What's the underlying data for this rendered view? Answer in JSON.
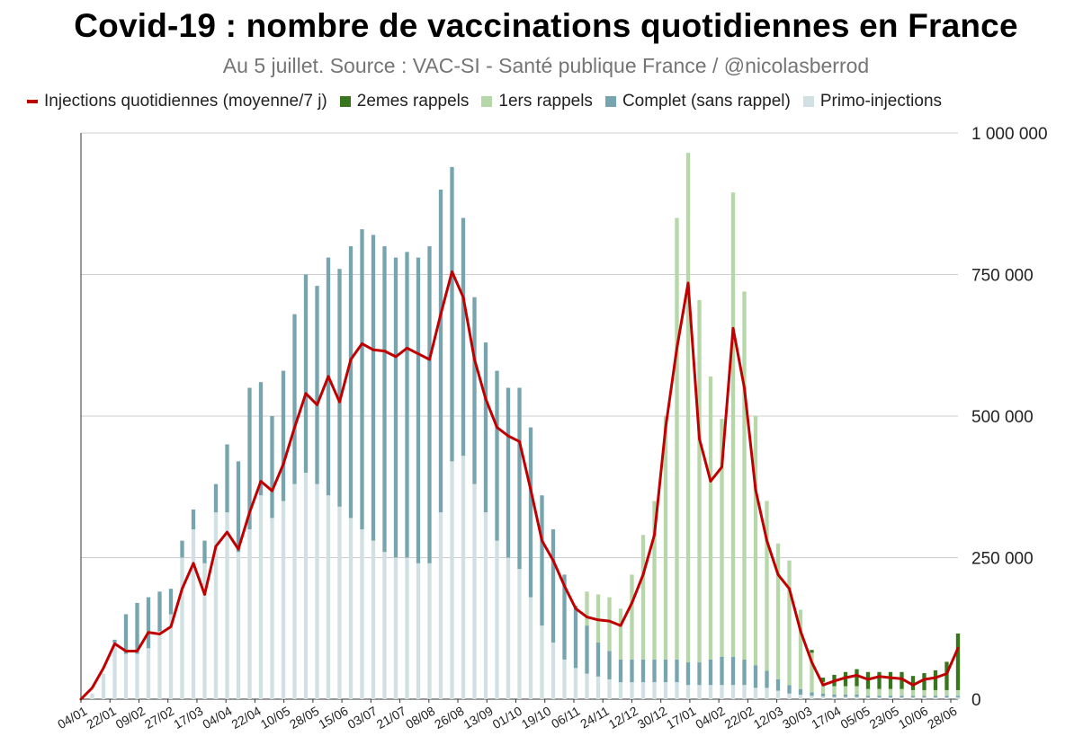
{
  "title": "Covid-19 : nombre de vaccinations quotidiennes en France",
  "subtitle": "Au 5 juillet. Source : VAC-SI - Santé publique France / @nicolasberrod",
  "colors": {
    "injections_line": "#c00000",
    "rappels2": "#38761d",
    "rappels1": "#b6d7a8",
    "complet": "#76a5af",
    "primo": "#d0e0e3",
    "grid": "#cccccc",
    "axis": "#333333"
  },
  "legend": [
    {
      "label": "Injections quotidiennes (moyenne/7 j)",
      "color": "#c00000",
      "kind": "line"
    },
    {
      "label": "2emes rappels",
      "color": "#38761d",
      "kind": "box"
    },
    {
      "label": "1ers rappels",
      "color": "#b6d7a8",
      "kind": "box"
    },
    {
      "label": "Complet (sans rappel)",
      "color": "#76a5af",
      "kind": "box"
    },
    {
      "label": "Primo-injections",
      "color": "#d0e0e3",
      "kind": "box"
    }
  ],
  "chart_data": {
    "type": "bar",
    "stacked": true,
    "grid": true,
    "ylim": [
      0,
      1000000
    ],
    "y_ticks": [
      0,
      250000,
      500000,
      750000,
      1000000
    ],
    "y_tick_labels": [
      "0",
      "250 000",
      "500 000",
      "750 000",
      "1 000 000"
    ],
    "y_axis_side": "right",
    "x_tick_labels": [
      "04/01",
      "22/01",
      "09/02",
      "27/02",
      "17/03",
      "04/04",
      "22/04",
      "10/05",
      "28/05",
      "15/06",
      "03/07",
      "21/07",
      "08/08",
      "26/08",
      "13/09",
      "01/10",
      "19/10",
      "06/11",
      "24/11",
      "12/12",
      "30/12",
      "17/01",
      "04/02",
      "22/02",
      "12/03",
      "30/03",
      "17/04",
      "05/05",
      "23/05",
      "10/06",
      "28/06"
    ],
    "x_tick_step_days": 18,
    "bar_series_order": [
      "Primo-injections",
      "Complet (sans rappel)",
      "1ers rappels",
      "2emes rappels"
    ],
    "line_series": {
      "name": "Injections quotidiennes (moyenne/7 j)",
      "values": [
        0,
        20000,
        55000,
        98000,
        85000,
        85000,
        118000,
        115000,
        128000,
        195000,
        240000,
        185000,
        270000,
        295000,
        265000,
        330000,
        385000,
        368000,
        415000,
        480000,
        540000,
        520000,
        570000,
        525000,
        600000,
        628000,
        617000,
        615000,
        605000,
        620000,
        610000,
        600000,
        680000,
        755000,
        710000,
        600000,
        530000,
        480000,
        465000,
        455000,
        370000,
        280000,
        245000,
        200000,
        160000,
        145000,
        140000,
        138000,
        130000,
        170000,
        220000,
        290000,
        480000,
        620000,
        735000,
        460000,
        385000,
        410000,
        655000,
        550000,
        370000,
        280000,
        220000,
        195000,
        120000,
        65000,
        25000,
        32000,
        38000,
        42000,
        35000,
        40000,
        38000,
        36000,
        25000,
        35000,
        38000,
        45000,
        90000
      ]
    },
    "bar_segments": [
      {
        "primo": 0,
        "complet": 0,
        "rappels1": 0,
        "rappels2": 0
      },
      {
        "primo": 10000,
        "complet": 0,
        "rappels1": 0,
        "rappels2": 0
      },
      {
        "primo": 45000,
        "complet": 0,
        "rappels1": 0,
        "rappels2": 0
      },
      {
        "primo": 100000,
        "complet": 5000,
        "rappels1": 0,
        "rappels2": 0
      },
      {
        "primo": 80000,
        "complet": 70000,
        "rappels1": 0,
        "rappels2": 0
      },
      {
        "primo": 80000,
        "complet": 90000,
        "rappels1": 0,
        "rappels2": 0
      },
      {
        "primo": 90000,
        "complet": 90000,
        "rappels1": 0,
        "rappels2": 0
      },
      {
        "primo": 120000,
        "complet": 70000,
        "rappels1": 0,
        "rappels2": 0
      },
      {
        "primo": 150000,
        "complet": 45000,
        "rappels1": 0,
        "rappels2": 0
      },
      {
        "primo": 250000,
        "complet": 30000,
        "rappels1": 0,
        "rappels2": 0
      },
      {
        "primo": 300000,
        "complet": 35000,
        "rappels1": 0,
        "rappels2": 0
      },
      {
        "primo": 240000,
        "complet": 40000,
        "rappels1": 0,
        "rappels2": 0
      },
      {
        "primo": 330000,
        "complet": 50000,
        "rappels1": 0,
        "rappels2": 0
      },
      {
        "primo": 330000,
        "complet": 120000,
        "rappels1": 0,
        "rappels2": 0
      },
      {
        "primo": 260000,
        "complet": 160000,
        "rappels1": 0,
        "rappels2": 0
      },
      {
        "primo": 300000,
        "complet": 250000,
        "rappels1": 0,
        "rappels2": 0
      },
      {
        "primo": 360000,
        "complet": 200000,
        "rappels1": 0,
        "rappels2": 0
      },
      {
        "primo": 320000,
        "complet": 180000,
        "rappels1": 0,
        "rappels2": 0
      },
      {
        "primo": 350000,
        "complet": 230000,
        "rappels1": 0,
        "rappels2": 0
      },
      {
        "primo": 380000,
        "complet": 300000,
        "rappels1": 0,
        "rappels2": 0
      },
      {
        "primo": 400000,
        "complet": 350000,
        "rappels1": 0,
        "rappels2": 0
      },
      {
        "primo": 380000,
        "complet": 350000,
        "rappels1": 0,
        "rappels2": 0
      },
      {
        "primo": 360000,
        "complet": 420000,
        "rappels1": 0,
        "rappels2": 0
      },
      {
        "primo": 340000,
        "complet": 420000,
        "rappels1": 0,
        "rappels2": 0
      },
      {
        "primo": 320000,
        "complet": 480000,
        "rappels1": 0,
        "rappels2": 0
      },
      {
        "primo": 300000,
        "complet": 530000,
        "rappels1": 0,
        "rappels2": 0
      },
      {
        "primo": 280000,
        "complet": 540000,
        "rappels1": 0,
        "rappels2": 0
      },
      {
        "primo": 260000,
        "complet": 540000,
        "rappels1": 0,
        "rappels2": 0
      },
      {
        "primo": 250000,
        "complet": 530000,
        "rappels1": 0,
        "rappels2": 0
      },
      {
        "primo": 250000,
        "complet": 540000,
        "rappels1": 0,
        "rappels2": 0
      },
      {
        "primo": 240000,
        "complet": 540000,
        "rappels1": 0,
        "rappels2": 0
      },
      {
        "primo": 240000,
        "complet": 560000,
        "rappels1": 0,
        "rappels2": 0
      },
      {
        "primo": 330000,
        "complet": 570000,
        "rappels1": 0,
        "rappels2": 0
      },
      {
        "primo": 420000,
        "complet": 520000,
        "rappels1": 0,
        "rappels2": 0
      },
      {
        "primo": 430000,
        "complet": 420000,
        "rappels1": 0,
        "rappels2": 0
      },
      {
        "primo": 380000,
        "complet": 330000,
        "rappels1": 0,
        "rappels2": 0
      },
      {
        "primo": 330000,
        "complet": 300000,
        "rappels1": 0,
        "rappels2": 0
      },
      {
        "primo": 280000,
        "complet": 300000,
        "rappels1": 0,
        "rappels2": 0
      },
      {
        "primo": 250000,
        "complet": 300000,
        "rappels1": 0,
        "rappels2": 0
      },
      {
        "primo": 230000,
        "complet": 320000,
        "rappels1": 0,
        "rappels2": 0
      },
      {
        "primo": 180000,
        "complet": 300000,
        "rappels1": 0,
        "rappels2": 0
      },
      {
        "primo": 130000,
        "complet": 230000,
        "rappels1": 0,
        "rappels2": 0
      },
      {
        "primo": 100000,
        "complet": 200000,
        "rappels1": 0,
        "rappels2": 0
      },
      {
        "primo": 70000,
        "complet": 150000,
        "rappels1": 0,
        "rappels2": 0
      },
      {
        "primo": 55000,
        "complet": 110000,
        "rappels1": 0,
        "rappels2": 0
      },
      {
        "primo": 45000,
        "complet": 85000,
        "rappels1": 60000,
        "rappels2": 0
      },
      {
        "primo": 40000,
        "complet": 60000,
        "rappels1": 85000,
        "rappels2": 0
      },
      {
        "primo": 35000,
        "complet": 50000,
        "rappels1": 95000,
        "rappels2": 0
      },
      {
        "primo": 30000,
        "complet": 40000,
        "rappels1": 90000,
        "rappels2": 0
      },
      {
        "primo": 30000,
        "complet": 40000,
        "rappels1": 150000,
        "rappels2": 0
      },
      {
        "primo": 30000,
        "complet": 40000,
        "rappels1": 220000,
        "rappels2": 0
      },
      {
        "primo": 30000,
        "complet": 40000,
        "rappels1": 280000,
        "rappels2": 0
      },
      {
        "primo": 30000,
        "complet": 40000,
        "rappels1": 430000,
        "rappels2": 0
      },
      {
        "primo": 30000,
        "complet": 40000,
        "rappels1": 780000,
        "rappels2": 0
      },
      {
        "primo": 25000,
        "complet": 40000,
        "rappels1": 900000,
        "rappels2": 0
      },
      {
        "primo": 25000,
        "complet": 40000,
        "rappels1": 640000,
        "rappels2": 0
      },
      {
        "primo": 25000,
        "complet": 45000,
        "rappels1": 500000,
        "rappels2": 0
      },
      {
        "primo": 25000,
        "complet": 50000,
        "rappels1": 420000,
        "rappels2": 0
      },
      {
        "primo": 25000,
        "complet": 50000,
        "rappels1": 820000,
        "rappels2": 0
      },
      {
        "primo": 25000,
        "complet": 45000,
        "rappels1": 650000,
        "rappels2": 0
      },
      {
        "primo": 20000,
        "complet": 40000,
        "rappels1": 440000,
        "rappels2": 0
      },
      {
        "primo": 20000,
        "complet": 30000,
        "rappels1": 300000,
        "rappels2": 0
      },
      {
        "primo": 15000,
        "complet": 20000,
        "rappels1": 240000,
        "rappels2": 0
      },
      {
        "primo": 10000,
        "complet": 15000,
        "rappels1": 220000,
        "rappels2": 0
      },
      {
        "primo": 8000,
        "complet": 10000,
        "rappels1": 140000,
        "rappels2": 0
      },
      {
        "primo": 6000,
        "complet": 6000,
        "rappels1": 70000,
        "rappels2": 5000
      },
      {
        "primo": 5000,
        "complet": 5000,
        "rappels1": 20000,
        "rappels2": 8000
      },
      {
        "primo": 4000,
        "complet": 4000,
        "rappels1": 15000,
        "rappels2": 20000
      },
      {
        "primo": 4000,
        "complet": 4000,
        "rappels1": 15000,
        "rappels2": 25000
      },
      {
        "primo": 4000,
        "complet": 4000,
        "rappels1": 15000,
        "rappels2": 30000
      },
      {
        "primo": 3000,
        "complet": 3000,
        "rappels1": 12000,
        "rappels2": 30000
      },
      {
        "primo": 3000,
        "complet": 3000,
        "rappels1": 12000,
        "rappels2": 30000
      },
      {
        "primo": 3000,
        "complet": 3000,
        "rappels1": 12000,
        "rappels2": 30000
      },
      {
        "primo": 3000,
        "complet": 3000,
        "rappels1": 12000,
        "rappels2": 30000
      },
      {
        "primo": 3000,
        "complet": 3000,
        "rappels1": 10000,
        "rappels2": 25000
      },
      {
        "primo": 3000,
        "complet": 3000,
        "rappels1": 10000,
        "rappels2": 30000
      },
      {
        "primo": 3000,
        "complet": 3000,
        "rappels1": 10000,
        "rappels2": 35000
      },
      {
        "primo": 3000,
        "complet": 3000,
        "rappels1": 10000,
        "rappels2": 50000
      },
      {
        "primo": 3000,
        "complet": 3000,
        "rappels1": 10000,
        "rappels2": 100000
      }
    ]
  }
}
